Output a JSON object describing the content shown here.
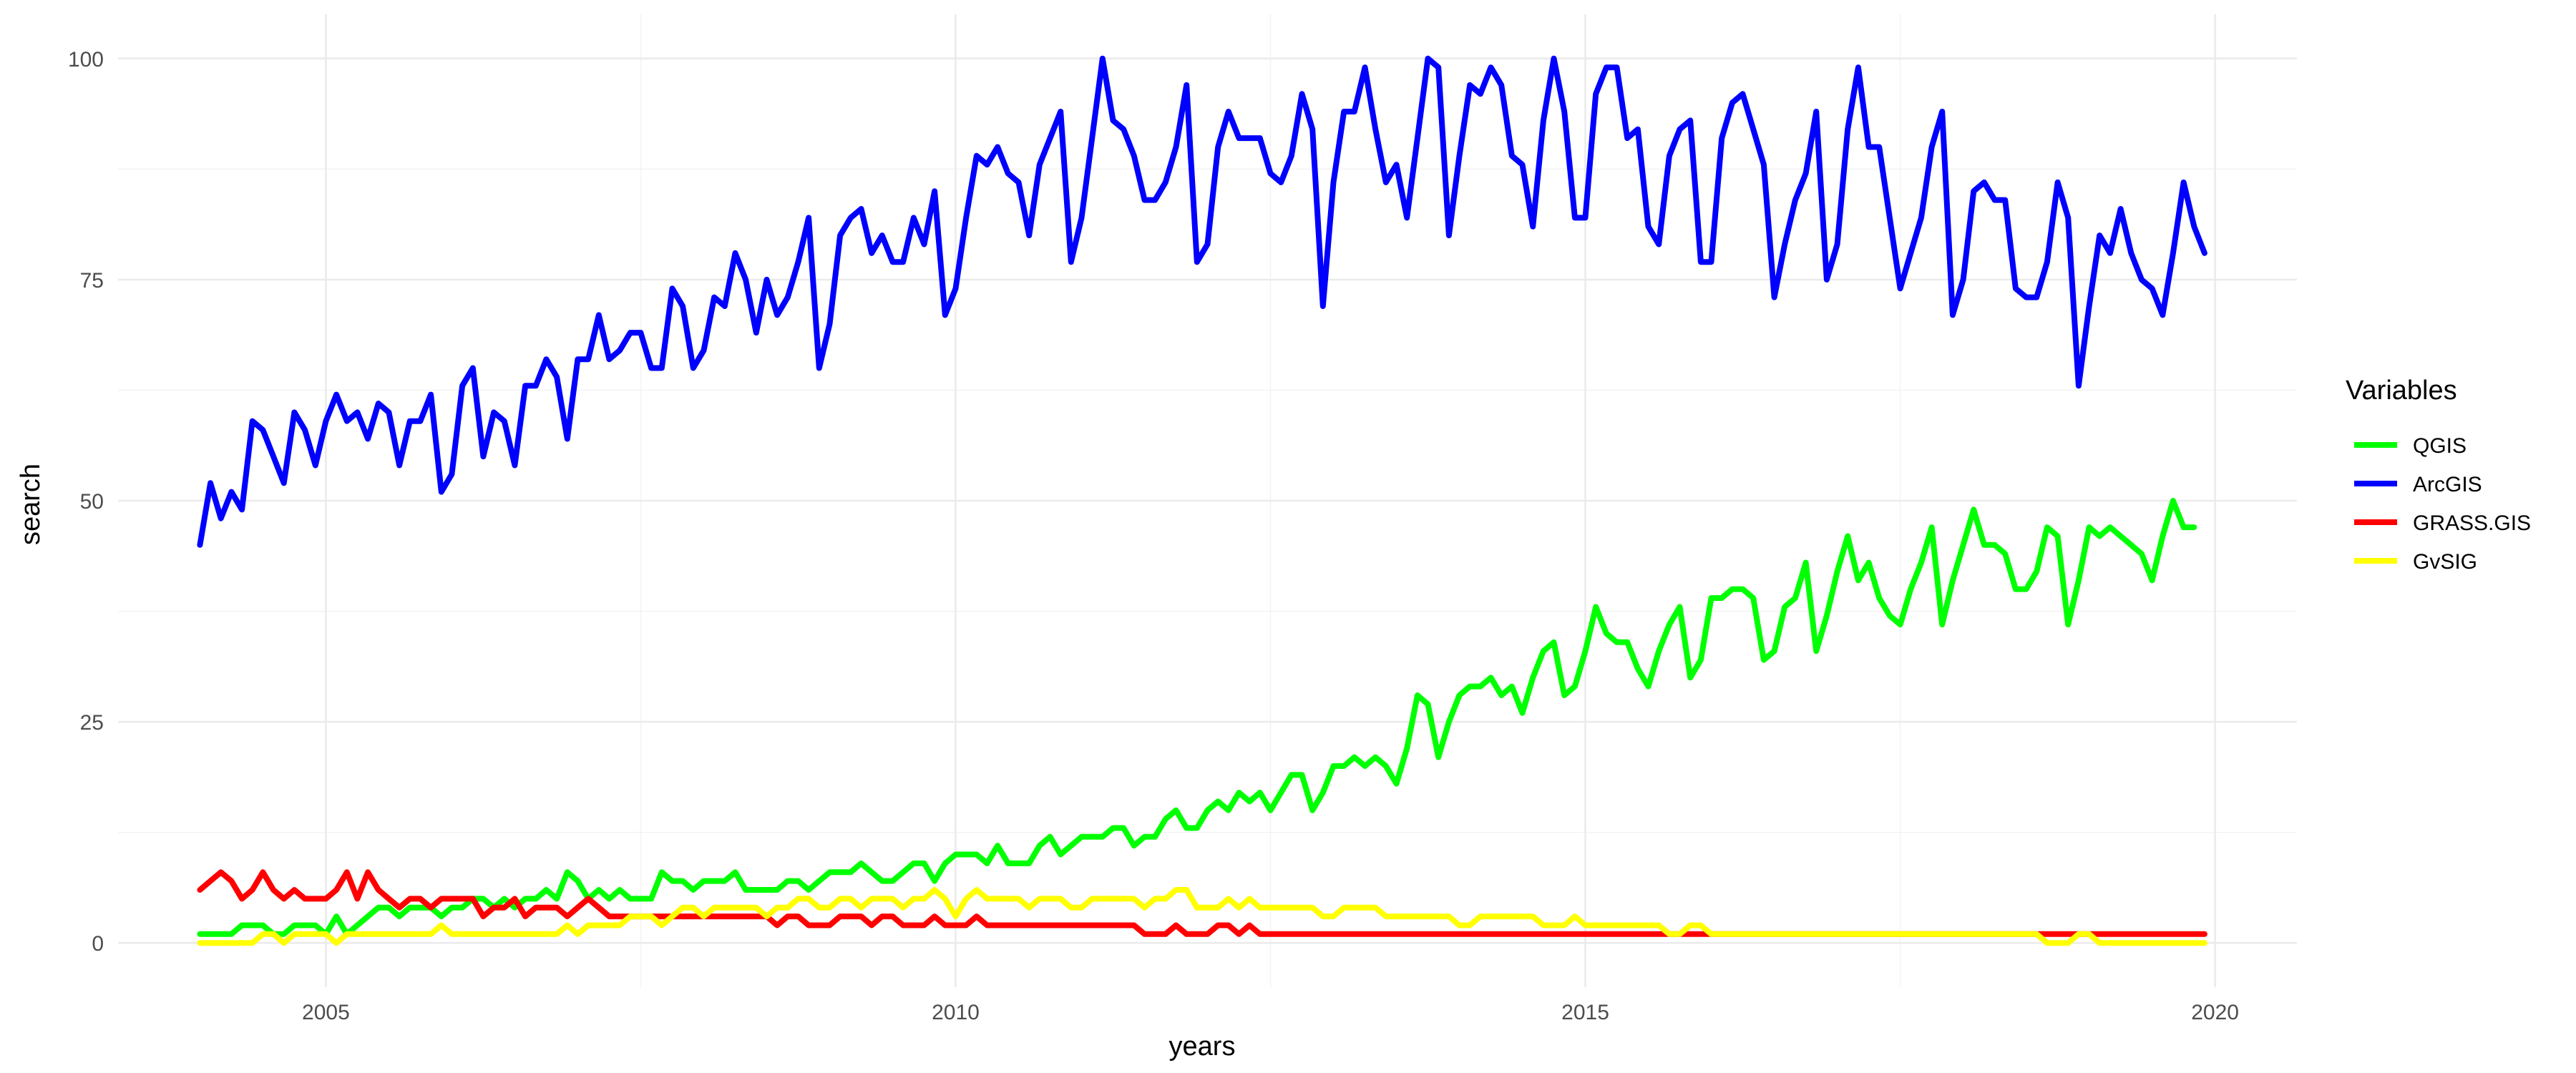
{
  "chart_data": {
    "type": "line",
    "xlabel": "years",
    "ylabel": "search",
    "xlim": [
      2003.35,
      2020.65
    ],
    "ylim": [
      -5,
      105
    ],
    "x_ticks": [
      2005,
      2010,
      2015,
      2020
    ],
    "y_ticks": [
      0,
      25,
      50,
      75,
      100
    ],
    "x_minor_ticks": [
      2007.5,
      2012.5,
      2017.5
    ],
    "y_minor_ticks": [
      12.5,
      37.5,
      62.5,
      87.5
    ],
    "grid": true,
    "legend": {
      "title": "Variables",
      "position": "right"
    },
    "x_start": "2004-01",
    "x_step": "1 month",
    "series": [
      {
        "name": "QGIS",
        "color": "#00ff00",
        "values": [
          1,
          1,
          1,
          1,
          2,
          2,
          2,
          1,
          1,
          2,
          2,
          2,
          1,
          3,
          1,
          2,
          3,
          4,
          4,
          3,
          4,
          4,
          4,
          3,
          4,
          4,
          5,
          5,
          4,
          5,
          4,
          5,
          5,
          6,
          5,
          8,
          7,
          5,
          6,
          5,
          6,
          5,
          5,
          5,
          8,
          7,
          7,
          6,
          7,
          7,
          7,
          8,
          6,
          6,
          6,
          6,
          7,
          7,
          6,
          7,
          8,
          8,
          8,
          9,
          8,
          7,
          7,
          8,
          9,
          9,
          7,
          9,
          10,
          10,
          10,
          9,
          11,
          9,
          9,
          9,
          11,
          12,
          10,
          11,
          12,
          12,
          12,
          13,
          13,
          11,
          12,
          12,
          14,
          15,
          13,
          13,
          15,
          16,
          15,
          17,
          16,
          17,
          15,
          17,
          19,
          19,
          15,
          17,
          20,
          20,
          21,
          20,
          21,
          20,
          18,
          22,
          28,
          27,
          21,
          25,
          28,
          29,
          29,
          30,
          28,
          29,
          26,
          30,
          33,
          34,
          28,
          29,
          33,
          38,
          35,
          34,
          34,
          31,
          29,
          33,
          36,
          38,
          30,
          32,
          39,
          39,
          40,
          40,
          39,
          32,
          33,
          38,
          39,
          43,
          33,
          37,
          42,
          46,
          41,
          43,
          39,
          37,
          36,
          40,
          43,
          47,
          36,
          41,
          45,
          49,
          45,
          45,
          44,
          40,
          40,
          42,
          47,
          46,
          36,
          41,
          47,
          46,
          47,
          46,
          45,
          44,
          41,
          46,
          50,
          47,
          47
        ]
      },
      {
        "name": "ArcGIS",
        "color": "#0000ff",
        "values": [
          45,
          52,
          48,
          51,
          49,
          59,
          58,
          55,
          52,
          60,
          58,
          54,
          59,
          62,
          59,
          60,
          57,
          61,
          60,
          54,
          59,
          59,
          62,
          51,
          53,
          63,
          65,
          55,
          60,
          59,
          54,
          63,
          63,
          66,
          64,
          57,
          66,
          66,
          71,
          66,
          67,
          69,
          69,
          65,
          65,
          74,
          72,
          65,
          67,
          73,
          72,
          78,
          75,
          69,
          75,
          71,
          73,
          77,
          82,
          65,
          70,
          80,
          82,
          83,
          78,
          80,
          77,
          77,
          82,
          79,
          85,
          71,
          74,
          82,
          89,
          88,
          90,
          87,
          86,
          80,
          88,
          91,
          94,
          77,
          82,
          91,
          100,
          93,
          92,
          89,
          84,
          84,
          86,
          90,
          97,
          77,
          79,
          90,
          94,
          91,
          91,
          91,
          87,
          86,
          89,
          96,
          92,
          72,
          86,
          94,
          94,
          99,
          92,
          86,
          88,
          82,
          91,
          100,
          99,
          80,
          89,
          97,
          96,
          99,
          97,
          89,
          88,
          81,
          93,
          100,
          94,
          82,
          82,
          96,
          99,
          99,
          91,
          92,
          81,
          79,
          89,
          92,
          93,
          77,
          77,
          91,
          95,
          96,
          92,
          88,
          73,
          79,
          84,
          87,
          94,
          75,
          79,
          92,
          99,
          90,
          90,
          82,
          74,
          78,
          82,
          90,
          94,
          71,
          75,
          85,
          86,
          84,
          84,
          74,
          73,
          73,
          77,
          86,
          82,
          63,
          72,
          80,
          78,
          83,
          78,
          75,
          74,
          71,
          78,
          86,
          81,
          78
        ]
      },
      {
        "name": "GRASS.GIS",
        "color": "#ff0000",
        "values": [
          6,
          7,
          8,
          7,
          5,
          6,
          8,
          6,
          5,
          6,
          5,
          5,
          5,
          6,
          8,
          5,
          8,
          6,
          5,
          4,
          5,
          5,
          4,
          5,
          5,
          5,
          5,
          3,
          4,
          4,
          5,
          3,
          4,
          4,
          4,
          3,
          4,
          5,
          4,
          3,
          3,
          3,
          3,
          3,
          3,
          3,
          3,
          3,
          3,
          3,
          3,
          3,
          3,
          3,
          3,
          2,
          3,
          3,
          2,
          2,
          2,
          3,
          3,
          3,
          2,
          3,
          3,
          2,
          2,
          2,
          3,
          2,
          2,
          2,
          3,
          2,
          2,
          2,
          2,
          2,
          2,
          2,
          2,
          2,
          2,
          2,
          2,
          2,
          2,
          2,
          1,
          1,
          1,
          2,
          1,
          1,
          1,
          2,
          2,
          1,
          2,
          1,
          1,
          1,
          1,
          1,
          1,
          1,
          1,
          1,
          1,
          1,
          1,
          1,
          1,
          1,
          1,
          1,
          1,
          1,
          1,
          1,
          1,
          1,
          1,
          1,
          1,
          1,
          1,
          1,
          1,
          1,
          1,
          1,
          1,
          1,
          1,
          1,
          1,
          1,
          1,
          1,
          1,
          1,
          1,
          1,
          1,
          1,
          1,
          1,
          1,
          1,
          1,
          1,
          1,
          1,
          1,
          1,
          1,
          1,
          1,
          1,
          1,
          1,
          1,
          1,
          1,
          1,
          1,
          1,
          1,
          1,
          1,
          1,
          1,
          1,
          1,
          1,
          1,
          1,
          1,
          1,
          1,
          1,
          1,
          1,
          1,
          1,
          1,
          1,
          1,
          1
        ]
      },
      {
        "name": "GvSIG",
        "color": "#ffff00",
        "values": [
          0,
          0,
          0,
          0,
          0,
          0,
          1,
          1,
          0,
          1,
          1,
          1,
          1,
          0,
          1,
          1,
          1,
          1,
          1,
          1,
          1,
          1,
          1,
          2,
          1,
          1,
          1,
          1,
          1,
          1,
          1,
          1,
          1,
          1,
          1,
          2,
          1,
          2,
          2,
          2,
          2,
          3,
          3,
          3,
          2,
          3,
          4,
          4,
          3,
          4,
          4,
          4,
          4,
          4,
          3,
          4,
          4,
          5,
          5,
          4,
          4,
          5,
          5,
          4,
          5,
          5,
          5,
          4,
          5,
          5,
          6,
          5,
          3,
          5,
          6,
          5,
          5,
          5,
          5,
          4,
          5,
          5,
          5,
          4,
          4,
          5,
          5,
          5,
          5,
          5,
          4,
          5,
          5,
          6,
          6,
          4,
          4,
          4,
          5,
          4,
          5,
          4,
          4,
          4,
          4,
          4,
          4,
          3,
          3,
          4,
          4,
          4,
          4,
          3,
          3,
          3,
          3,
          3,
          3,
          3,
          2,
          2,
          3,
          3,
          3,
          3,
          3,
          3,
          2,
          2,
          2,
          3,
          2,
          2,
          2,
          2,
          2,
          2,
          2,
          2,
          1,
          1,
          2,
          2,
          1,
          1,
          1,
          1,
          1,
          1,
          1,
          1,
          1,
          1,
          1,
          1,
          1,
          1,
          1,
          1,
          1,
          1,
          1,
          1,
          1,
          1,
          1,
          1,
          1,
          1,
          1,
          1,
          1,
          1,
          1,
          1,
          0,
          0,
          0,
          1,
          1,
          0,
          0,
          0,
          0,
          0,
          0,
          0,
          0,
          0,
          0,
          0
        ]
      }
    ]
  }
}
